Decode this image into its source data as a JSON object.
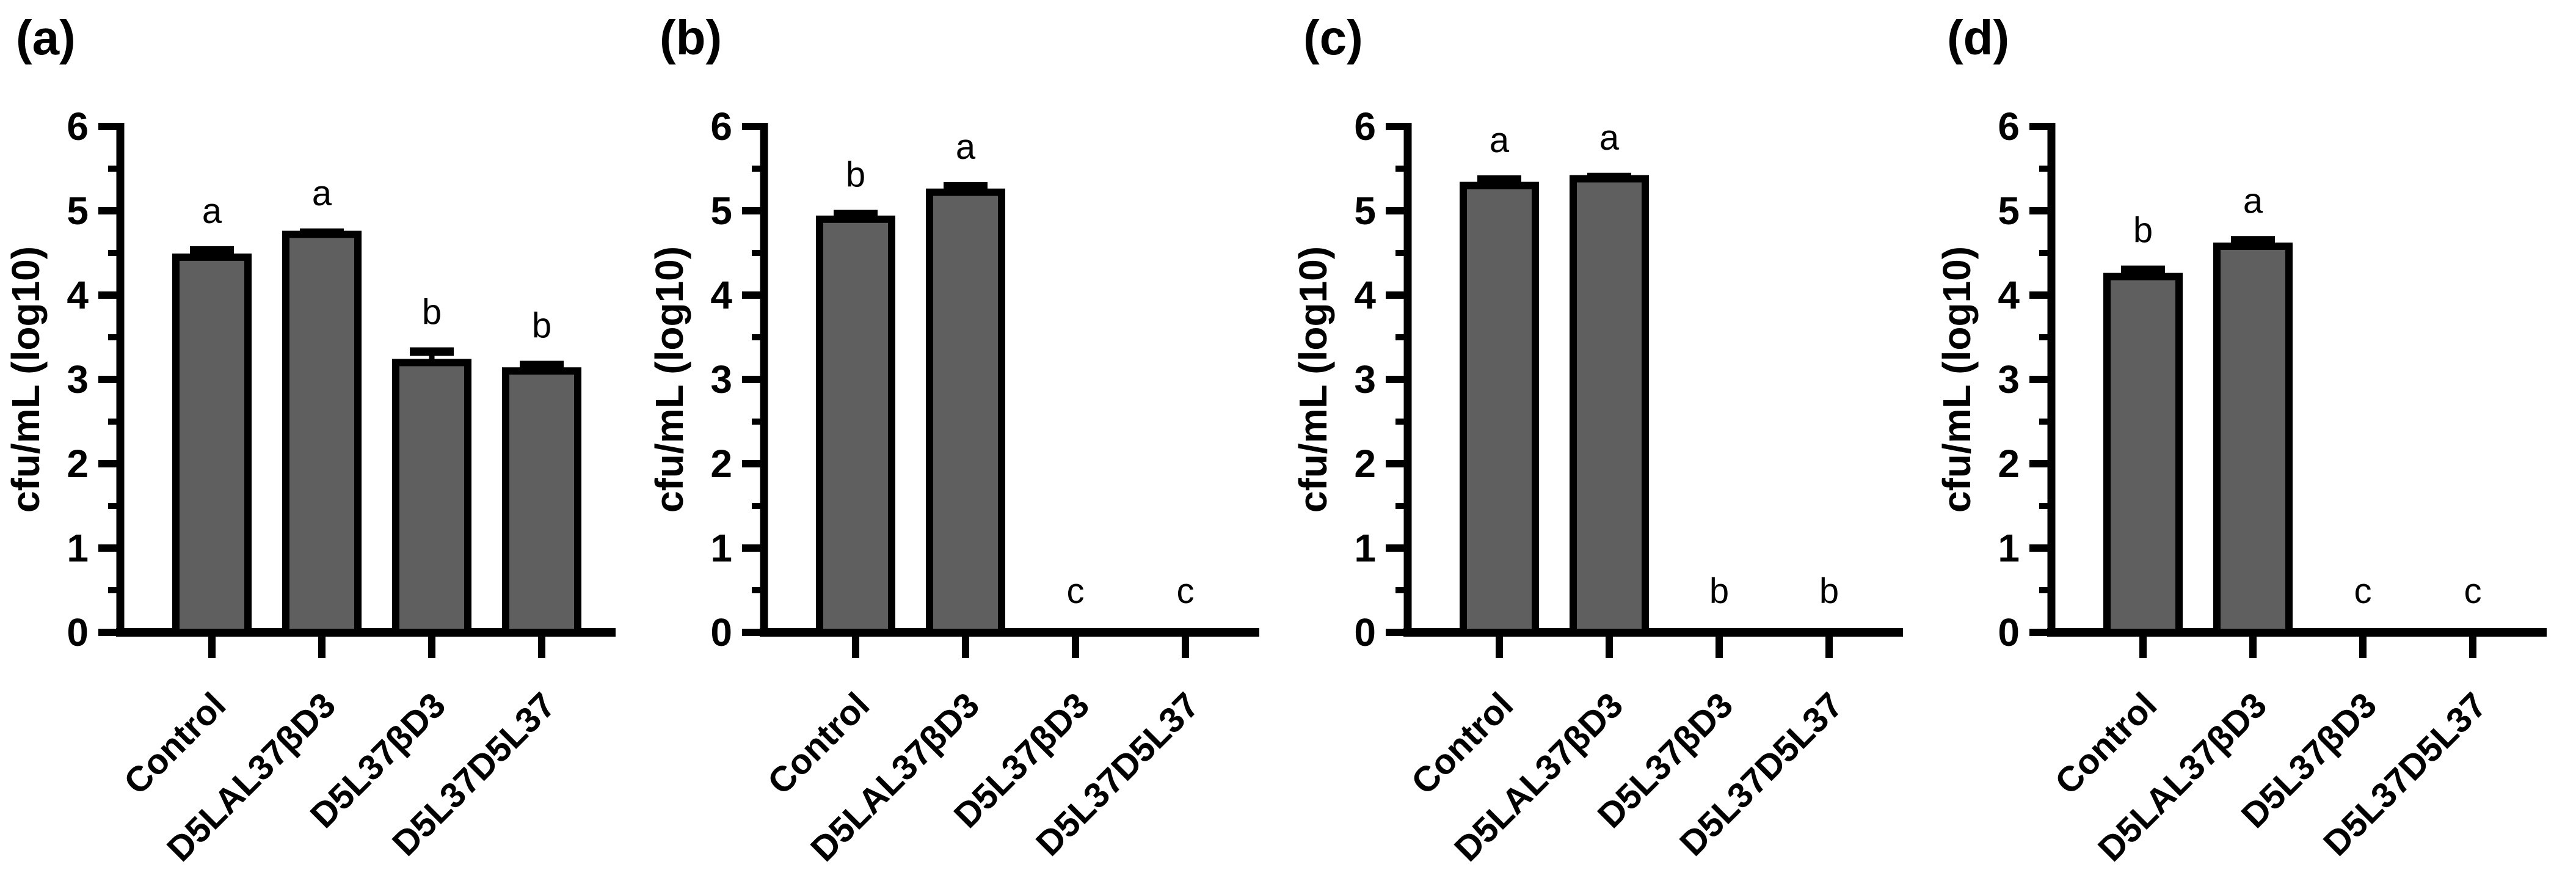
{
  "figure": {
    "background": "#ffffff",
    "description_visible_text_only": true
  },
  "style": {
    "bar_fill": "#5f5f5f",
    "bar_stroke": "#000000",
    "axis_color": "#000000",
    "text_color": "#000000",
    "background": "#ffffff"
  },
  "chart_data": [
    {
      "type": "bar",
      "panel_label": "(a)",
      "ylabel": "cfu/mL (log10)",
      "ylim": [
        0,
        6
      ],
      "yticks": [
        0,
        1,
        2,
        3,
        4,
        5,
        6
      ],
      "minor_tick_interval": 0.5,
      "grid": false,
      "legend": "none",
      "categories": [
        "Control",
        "D5LAL37βD3",
        "D5L37βD3",
        "D5L37D5L37"
      ],
      "values": [
        4.45,
        4.72,
        3.2,
        3.1
      ],
      "errors": [
        0.08,
        0.02,
        0.13,
        0.07
      ],
      "sig_letters": [
        "a",
        "a",
        "b",
        "b"
      ]
    },
    {
      "type": "bar",
      "panel_label": "(b)",
      "ylabel": "cfu/mL (log10)",
      "ylim": [
        0,
        6
      ],
      "yticks": [
        0,
        1,
        2,
        3,
        4,
        5,
        6
      ],
      "minor_tick_interval": 0.5,
      "grid": false,
      "legend": "none",
      "categories": [
        "Control",
        "D5LAL37βD3",
        "D5L37βD3",
        "D5L37D5L37"
      ],
      "values": [
        4.9,
        5.22,
        0,
        0
      ],
      "errors": [
        0.06,
        0.07,
        0,
        0
      ],
      "sig_letters": [
        "b",
        "a",
        "c",
        "c"
      ]
    },
    {
      "type": "bar",
      "panel_label": "(c)",
      "ylabel": "cfu/mL (log10)",
      "ylim": [
        0,
        6
      ],
      "yticks": [
        0,
        1,
        2,
        3,
        4,
        5,
        6
      ],
      "minor_tick_interval": 0.5,
      "grid": false,
      "legend": "none",
      "categories": [
        "Control",
        "D5LAL37βD3",
        "D5L37βD3",
        "D5L37D5L37"
      ],
      "values": [
        5.3,
        5.38,
        0,
        0
      ],
      "errors": [
        0.07,
        0.02,
        0,
        0
      ],
      "sig_letters": [
        "a",
        "a",
        "b",
        "b"
      ]
    },
    {
      "type": "bar",
      "panel_label": "(d)",
      "ylabel": "cfu/mL (log10)",
      "ylim": [
        0,
        6
      ],
      "yticks": [
        0,
        1,
        2,
        3,
        4,
        5,
        6
      ],
      "minor_tick_interval": 0.5,
      "grid": false,
      "legend": "none",
      "categories": [
        "Control",
        "D5LAL37βD3",
        "D5L37βD3",
        "D5L37D5L37"
      ],
      "values": [
        4.22,
        4.58,
        0,
        0
      ],
      "errors": [
        0.08,
        0.07,
        0,
        0
      ],
      "sig_letters": [
        "b",
        "a",
        "c",
        "c"
      ]
    }
  ]
}
